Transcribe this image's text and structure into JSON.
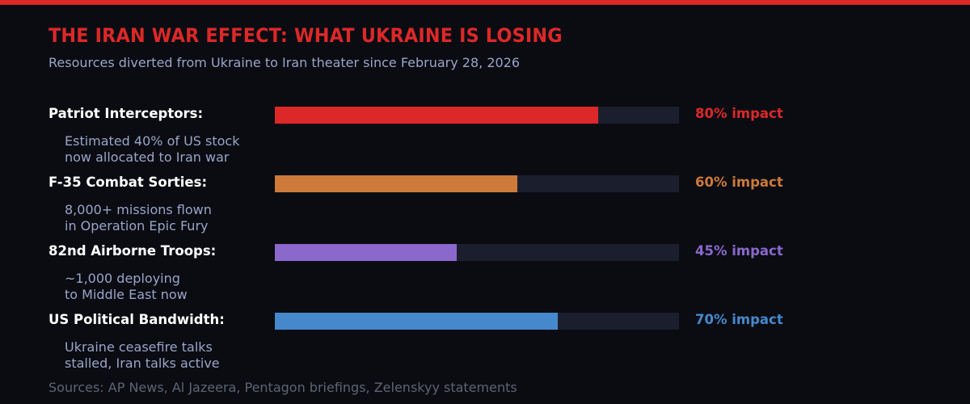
{
  "header": {
    "title": "THE IRAN WAR EFFECT: WHAT UKRAINE IS LOSING",
    "subtitle": "Resources diverted from Ukraine to Iran theater since February 28, 2026"
  },
  "rows": [
    {
      "label": "Patriot Interceptors:",
      "desc": "Estimated 40% of US stock\nnow allocated to Iran war",
      "value": 80,
      "pct_label": "80% impact",
      "color": "#dc2828"
    },
    {
      "label": "F-35 Combat Sorties:",
      "desc": "8,000+ missions flown\nin Operation Epic Fury",
      "value": 60,
      "pct_label": "60% impact",
      "color": "#cd7a3a"
    },
    {
      "label": "82nd Airborne Troops:",
      "desc": "~1,000 deploying\nto Middle East now",
      "value": 45,
      "pct_label": "45% impact",
      "color": "#8a68cc"
    },
    {
      "label": "US Political Bandwidth:",
      "desc": "Ukraine ceasefire talks\nstalled, Iran talks active",
      "value": 70,
      "pct_label": "70% impact",
      "color": "#4589cc"
    }
  ],
  "footer": {
    "sources": "Sources: AP News, Al Jazeera, Pentagon briefings, Zelenskyy statements"
  },
  "chart_data": {
    "type": "bar",
    "orientation": "horizontal",
    "title": "THE IRAN WAR EFFECT: WHAT UKRAINE IS LOSING",
    "subtitle": "Resources diverted from Ukraine to Iran theater since February 28, 2026",
    "categories": [
      "Patriot Interceptors",
      "F-35 Combat Sorties",
      "82nd Airborne Troops",
      "US Political Bandwidth"
    ],
    "values": [
      80,
      60,
      45,
      70
    ],
    "value_labels": [
      "80% impact",
      "60% impact",
      "45% impact",
      "70% impact"
    ],
    "annotations": [
      "Estimated 40% of US stock now allocated to Iran war",
      "8,000+ missions flown in Operation Epic Fury",
      "~1,000 deploying to Middle East now",
      "Ukraine ceasefire talks stalled, Iran talks active"
    ],
    "colors": [
      "#dc2828",
      "#cd7a3a",
      "#8a68cc",
      "#4589cc"
    ],
    "xlim": [
      0,
      100
    ],
    "xlabel": "",
    "ylabel": "",
    "grid": false,
    "legend": null,
    "source_note": "Sources: AP News, Al Jazeera, Pentagon briefings, Zelenskyy statements"
  }
}
